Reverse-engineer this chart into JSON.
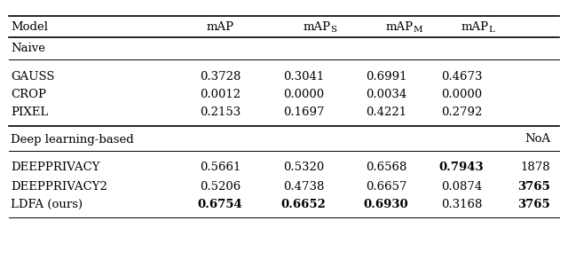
{
  "rows_naive": [
    {
      "model": "GAUSS",
      "mAP": "0.3728",
      "mAPS": "0.3041",
      "mAPM": "0.6991",
      "mAPL": "0.4673",
      "NoA": "",
      "bold": []
    },
    {
      "model": "CROP",
      "mAP": "0.0012",
      "mAPS": "0.0000",
      "mAPM": "0.0034",
      "mAPL": "0.0000",
      "NoA": "",
      "bold": []
    },
    {
      "model": "PIXEL",
      "mAP": "0.2153",
      "mAPS": "0.1697",
      "mAPM": "0.4221",
      "mAPL": "0.2792",
      "NoA": "",
      "bold": []
    }
  ],
  "rows_deep": [
    {
      "model": "DEEPPRIVACY",
      "mAP": "0.5661",
      "mAPS": "0.5320",
      "mAPM": "0.6568",
      "mAPL": "0.7943",
      "NoA": "1878",
      "bold": [
        "mAPL"
      ]
    },
    {
      "model": "DEEPPRIVACY2",
      "mAP": "0.5206",
      "mAPS": "0.4738",
      "mAPM": "0.6657",
      "mAPL": "0.0874",
      "NoA": "3765",
      "bold": [
        "NoA"
      ]
    },
    {
      "model": "LDFA (ours)",
      "mAP": "0.6754",
      "mAPS": "0.6652",
      "mAPM": "0.6930",
      "mAPL": "0.3168",
      "NoA": "3765",
      "bold": [
        "mAP",
        "mAPS",
        "mAPM",
        "NoA"
      ]
    }
  ],
  "model_display": {
    "GAUSS": [
      "G",
      "auss"
    ],
    "CROP": [
      "C",
      "rop"
    ],
    "PIXEL": [
      "P",
      "ixel"
    ],
    "DEEPPRIVACY": [
      "D",
      "eep",
      "P",
      "rivacy"
    ],
    "DEEPPRIVACY2": [
      "D",
      "eep",
      "P",
      "rivacy2"
    ]
  },
  "bg_color": "#ffffff",
  "text_color": "#000000",
  "line_color": "#000000",
  "font_size": 9.5
}
